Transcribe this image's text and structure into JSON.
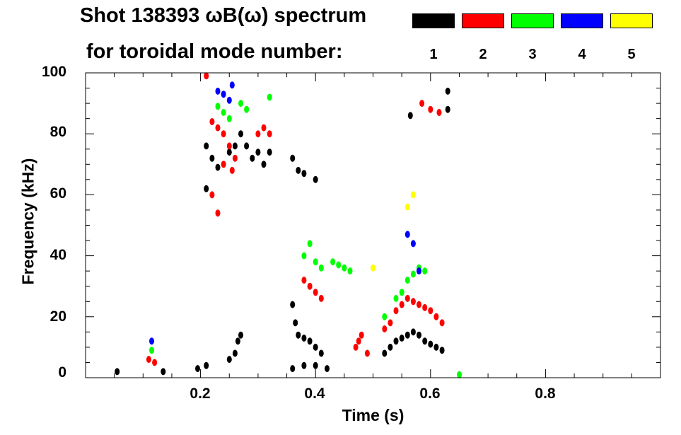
{
  "chart_data": {
    "type": "scatter",
    "title": "Shot 138393 ωB(ω) spectrum",
    "subtitle": "for toroidal mode number:",
    "xlabel": "Time (s)",
    "ylabel": "Frequency (kHz)",
    "xlim": [
      0.0,
      1.0
    ],
    "ylim": [
      0,
      100
    ],
    "x_ticks": [
      0.2,
      0.4,
      0.6,
      0.8
    ],
    "x_tick_labels": [
      "0.2",
      "0.4",
      "0.6",
      "0.8"
    ],
    "y_ticks": [
      0,
      20,
      40,
      60,
      80,
      100
    ],
    "y_tick_labels": [
      "0",
      "20",
      "40",
      "60",
      "80",
      "100"
    ],
    "legend": [
      {
        "mode": "1",
        "color": "#000000"
      },
      {
        "mode": "2",
        "color": "#ff0000"
      },
      {
        "mode": "3",
        "color": "#00ff00"
      },
      {
        "mode": "4",
        "color": "#0000ff"
      },
      {
        "mode": "5",
        "color": "#ffff00"
      }
    ],
    "series": [
      {
        "name": "n=1",
        "color": "#000000",
        "points": [
          [
            0.055,
            2
          ],
          [
            0.135,
            2
          ],
          [
            0.195,
            3
          ],
          [
            0.21,
            4
          ],
          [
            0.21,
            76
          ],
          [
            0.21,
            62
          ],
          [
            0.22,
            72
          ],
          [
            0.23,
            69
          ],
          [
            0.25,
            74
          ],
          [
            0.26,
            76
          ],
          [
            0.27,
            80
          ],
          [
            0.28,
            76
          ],
          [
            0.29,
            72
          ],
          [
            0.3,
            74
          ],
          [
            0.31,
            70
          ],
          [
            0.32,
            74
          ],
          [
            0.25,
            6
          ],
          [
            0.26,
            8
          ],
          [
            0.265,
            12
          ],
          [
            0.27,
            14
          ],
          [
            0.36,
            72
          ],
          [
            0.37,
            68
          ],
          [
            0.38,
            67
          ],
          [
            0.4,
            65
          ],
          [
            0.36,
            24
          ],
          [
            0.365,
            18
          ],
          [
            0.37,
            14
          ],
          [
            0.38,
            13
          ],
          [
            0.39,
            12
          ],
          [
            0.4,
            10
          ],
          [
            0.41,
            8
          ],
          [
            0.36,
            3
          ],
          [
            0.38,
            4
          ],
          [
            0.4,
            4
          ],
          [
            0.42,
            3
          ],
          [
            0.52,
            8
          ],
          [
            0.53,
            10
          ],
          [
            0.54,
            12
          ],
          [
            0.55,
            13
          ],
          [
            0.56,
            14
          ],
          [
            0.57,
            15
          ],
          [
            0.58,
            14
          ],
          [
            0.59,
            12
          ],
          [
            0.6,
            11
          ],
          [
            0.61,
            10
          ],
          [
            0.62,
            9
          ],
          [
            0.565,
            86
          ],
          [
            0.63,
            88
          ],
          [
            0.63,
            94
          ]
        ]
      },
      {
        "name": "n=2",
        "color": "#ff0000",
        "points": [
          [
            0.11,
            6
          ],
          [
            0.12,
            5
          ],
          [
            0.21,
            99
          ],
          [
            0.22,
            84
          ],
          [
            0.23,
            82
          ],
          [
            0.24,
            80
          ],
          [
            0.25,
            76
          ],
          [
            0.26,
            72
          ],
          [
            0.22,
            60
          ],
          [
            0.23,
            54
          ],
          [
            0.24,
            70
          ],
          [
            0.255,
            68
          ],
          [
            0.3,
            80
          ],
          [
            0.31,
            82
          ],
          [
            0.32,
            80
          ],
          [
            0.38,
            32
          ],
          [
            0.39,
            30
          ],
          [
            0.4,
            28
          ],
          [
            0.41,
            26
          ],
          [
            0.47,
            10
          ],
          [
            0.475,
            12
          ],
          [
            0.48,
            14
          ],
          [
            0.49,
            8
          ],
          [
            0.52,
            16
          ],
          [
            0.53,
            18
          ],
          [
            0.54,
            22
          ],
          [
            0.55,
            24
          ],
          [
            0.56,
            26
          ],
          [
            0.57,
            25
          ],
          [
            0.58,
            24
          ],
          [
            0.59,
            23
          ],
          [
            0.6,
            22
          ],
          [
            0.61,
            20
          ],
          [
            0.62,
            18
          ],
          [
            0.585,
            90
          ],
          [
            0.6,
            88
          ],
          [
            0.615,
            87
          ]
        ]
      },
      {
        "name": "n=3",
        "color": "#00ff00",
        "points": [
          [
            0.115,
            9
          ],
          [
            0.23,
            89
          ],
          [
            0.24,
            87
          ],
          [
            0.25,
            85
          ],
          [
            0.27,
            90
          ],
          [
            0.28,
            88
          ],
          [
            0.32,
            92
          ],
          [
            0.38,
            40
          ],
          [
            0.39,
            44
          ],
          [
            0.4,
            38
          ],
          [
            0.41,
            36
          ],
          [
            0.43,
            38
          ],
          [
            0.44,
            37
          ],
          [
            0.45,
            36
          ],
          [
            0.46,
            35
          ],
          [
            0.52,
            20
          ],
          [
            0.54,
            26
          ],
          [
            0.55,
            28
          ],
          [
            0.56,
            32
          ],
          [
            0.57,
            34
          ],
          [
            0.58,
            36
          ],
          [
            0.59,
            35
          ],
          [
            0.65,
            1
          ]
        ]
      },
      {
        "name": "n=4",
        "color": "#0000ff",
        "points": [
          [
            0.115,
            12
          ],
          [
            0.23,
            94
          ],
          [
            0.24,
            93
          ],
          [
            0.25,
            91
          ],
          [
            0.255,
            96
          ],
          [
            0.56,
            47
          ],
          [
            0.57,
            44
          ],
          [
            0.58,
            35
          ]
        ]
      },
      {
        "name": "n=5",
        "color": "#ffff00",
        "points": [
          [
            0.5,
            36
          ],
          [
            0.56,
            56
          ],
          [
            0.57,
            60
          ]
        ]
      }
    ]
  }
}
